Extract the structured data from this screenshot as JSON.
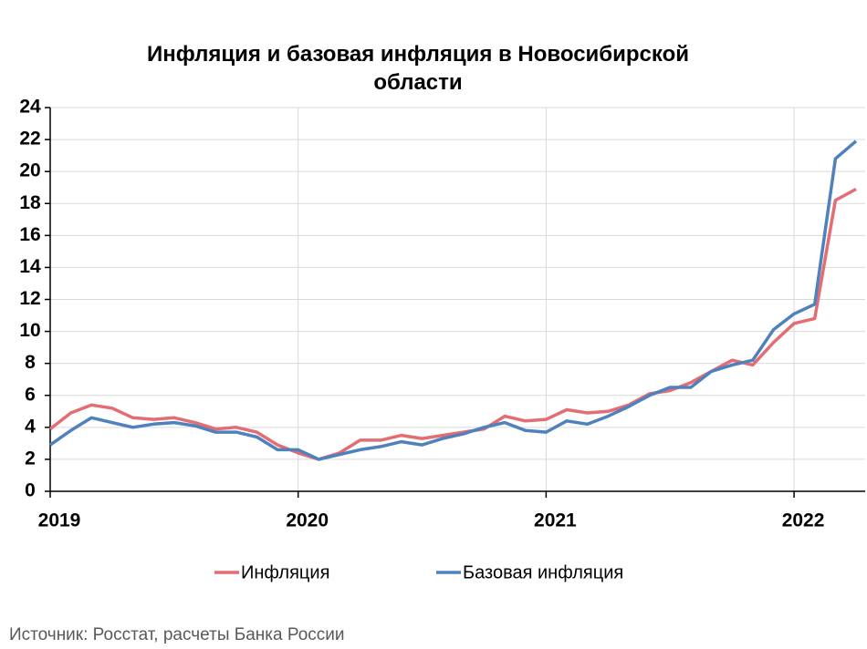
{
  "chart_data": {
    "type": "line",
    "title": "Инфляция и базовая инфляция в Новосибирской области",
    "source": "Источник: Росстат, расчеты Банка России",
    "categories": [
      "2019",
      null,
      null,
      null,
      null,
      null,
      null,
      null,
      null,
      null,
      null,
      null,
      "2020",
      null,
      null,
      null,
      null,
      null,
      null,
      null,
      null,
      null,
      null,
      null,
      "2021",
      null,
      null,
      null,
      null,
      null,
      null,
      null,
      null,
      null,
      null,
      null,
      "2022",
      null,
      null,
      null
    ],
    "series": [
      {
        "name": "Инфляция",
        "color": "#e46c73",
        "values": [
          3.9,
          4.9,
          5.4,
          5.2,
          4.6,
          4.5,
          4.6,
          4.3,
          3.9,
          4.0,
          3.7,
          2.9,
          2.4,
          2.0,
          2.4,
          3.2,
          3.2,
          3.5,
          3.3,
          3.5,
          3.7,
          3.9,
          4.7,
          4.4,
          4.5,
          5.1,
          4.9,
          5.0,
          5.4,
          6.1,
          6.3,
          6.8,
          7.5,
          8.2,
          7.9,
          9.3,
          10.5,
          10.8,
          18.2,
          18.9
        ]
      },
      {
        "name": "Базовая инфляция",
        "color": "#4f81bd",
        "values": [
          2.9,
          3.8,
          4.6,
          4.3,
          4.0,
          4.2,
          4.3,
          4.1,
          3.7,
          3.7,
          3.4,
          2.6,
          2.6,
          2.0,
          2.3,
          2.6,
          2.8,
          3.1,
          2.9,
          3.3,
          3.6,
          4.0,
          4.3,
          3.8,
          3.7,
          4.4,
          4.2,
          4.7,
          5.3,
          6.0,
          6.5,
          6.5,
          7.5,
          7.9,
          8.2,
          10.1,
          11.1,
          11.7,
          20.8,
          21.9
        ]
      }
    ],
    "ylim": [
      0,
      24
    ],
    "yticks": [
      0,
      2,
      4,
      6,
      8,
      10,
      12,
      14,
      16,
      18,
      20,
      22,
      24
    ],
    "grid": true,
    "legend": "bottom"
  }
}
